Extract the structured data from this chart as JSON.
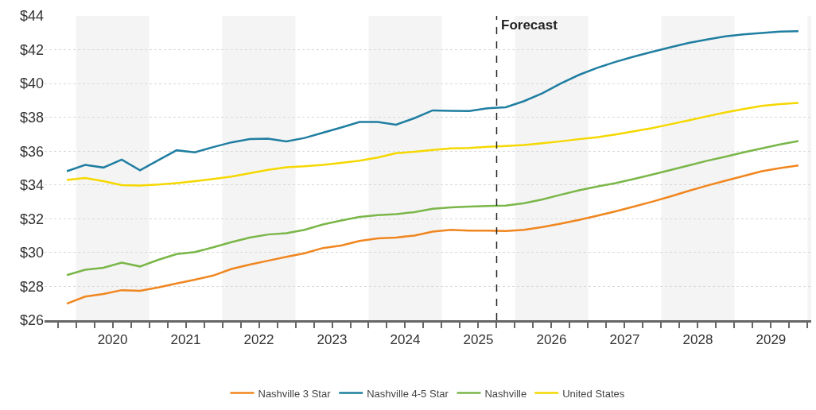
{
  "chart_data": {
    "type": "line",
    "x": [
      2019.875,
      2020.125,
      2020.375,
      2020.625,
      2020.875,
      2021.125,
      2021.375,
      2021.625,
      2021.875,
      2022.125,
      2022.375,
      2022.625,
      2022.875,
      2023.125,
      2023.375,
      2023.625,
      2023.875,
      2024.125,
      2024.375,
      2024.625,
      2024.875,
      2025.125,
      2025.375,
      2025.625,
      2025.875,
      2026.125,
      2026.375,
      2026.625,
      2026.875,
      2027.125,
      2027.375,
      2027.625,
      2027.875,
      2028.125,
      2028.375,
      2028.625,
      2028.875,
      2029.125,
      2029.375,
      2029.625,
      2029.875
    ],
    "series": [
      {
        "name": "Nashville 3 Star",
        "color": "#f0861f",
        "values": [
          26.98,
          27.4,
          27.55,
          27.78,
          27.74,
          27.94,
          28.17,
          28.4,
          28.64,
          29.03,
          29.29,
          29.52,
          29.75,
          29.96,
          30.27,
          30.42,
          30.69,
          30.84,
          30.89,
          31.01,
          31.24,
          31.35,
          31.3,
          31.3,
          31.27,
          31.35,
          31.51,
          31.71,
          31.93,
          32.18,
          32.44,
          32.72,
          33.01,
          33.32,
          33.65,
          33.96,
          34.25,
          34.53,
          34.81,
          35.0,
          35.15
        ]
      },
      {
        "name": "Nashville 4-5 Star",
        "color": "#1f7ea1",
        "values": [
          34.81,
          35.19,
          35.03,
          35.5,
          34.87,
          35.46,
          36.05,
          35.93,
          36.24,
          36.52,
          36.71,
          36.74,
          36.58,
          36.78,
          37.09,
          37.4,
          37.72,
          37.72,
          37.56,
          37.95,
          38.41,
          38.38,
          38.37,
          38.54,
          38.6,
          38.96,
          39.42,
          40.0,
          40.51,
          40.93,
          41.28,
          41.59,
          41.87,
          42.14,
          42.4,
          42.6,
          42.79,
          42.91,
          42.99,
          43.07,
          43.1
        ]
      },
      {
        "name": "Nashville",
        "color": "#7ab648",
        "values": [
          28.67,
          28.98,
          29.1,
          29.41,
          29.18,
          29.57,
          29.91,
          30.03,
          30.31,
          30.62,
          30.89,
          31.07,
          31.15,
          31.35,
          31.66,
          31.9,
          32.11,
          32.21,
          32.28,
          32.39,
          32.59,
          32.67,
          32.72,
          32.76,
          32.78,
          32.92,
          33.14,
          33.42,
          33.68,
          33.91,
          34.11,
          34.35,
          34.61,
          34.88,
          35.15,
          35.43,
          35.67,
          35.93,
          36.16,
          36.4,
          36.6
        ]
      },
      {
        "name": "United States",
        "color": "#f5d800",
        "values": [
          34.3,
          34.41,
          34.22,
          33.99,
          33.97,
          34.02,
          34.11,
          34.22,
          34.35,
          34.49,
          34.69,
          34.89,
          35.05,
          35.11,
          35.19,
          35.31,
          35.43,
          35.62,
          35.88,
          35.96,
          36.07,
          36.16,
          36.19,
          36.26,
          36.3,
          36.36,
          36.47,
          36.58,
          36.71,
          36.82,
          36.99,
          37.17,
          37.36,
          37.59,
          37.82,
          38.06,
          38.29,
          38.49,
          38.68,
          38.78,
          38.85
        ]
      }
    ],
    "xlim": [
      2019.57,
      2030.05
    ],
    "xticks": [
      {
        "value": 2019.75,
        "label": null
      },
      {
        "value": 2020.0,
        "label": null
      },
      {
        "value": 2020.25,
        "label": null
      },
      {
        "value": 2020.5,
        "label": "2020"
      },
      {
        "value": 2020.75,
        "label": null
      },
      {
        "value": 2021.0,
        "label": null
      },
      {
        "value": 2021.25,
        "label": null
      },
      {
        "value": 2021.5,
        "label": "2021"
      },
      {
        "value": 2021.75,
        "label": null
      },
      {
        "value": 2022.0,
        "label": null
      },
      {
        "value": 2022.25,
        "label": null
      },
      {
        "value": 2022.5,
        "label": "2022"
      },
      {
        "value": 2022.75,
        "label": null
      },
      {
        "value": 2023.0,
        "label": null
      },
      {
        "value": 2023.25,
        "label": null
      },
      {
        "value": 2023.5,
        "label": "2023"
      },
      {
        "value": 2023.75,
        "label": null
      },
      {
        "value": 2024.0,
        "label": null
      },
      {
        "value": 2024.25,
        "label": null
      },
      {
        "value": 2024.5,
        "label": "2024"
      },
      {
        "value": 2024.75,
        "label": null
      },
      {
        "value": 2025.0,
        "label": null
      },
      {
        "value": 2025.25,
        "label": null
      },
      {
        "value": 2025.5,
        "label": "2025"
      },
      {
        "value": 2025.75,
        "label": null
      },
      {
        "value": 2026.0,
        "label": null
      },
      {
        "value": 2026.25,
        "label": null
      },
      {
        "value": 2026.5,
        "label": "2026"
      },
      {
        "value": 2026.75,
        "label": null
      },
      {
        "value": 2027.0,
        "label": null
      },
      {
        "value": 2027.25,
        "label": null
      },
      {
        "value": 2027.5,
        "label": "2027"
      },
      {
        "value": 2027.75,
        "label": null
      },
      {
        "value": 2028.0,
        "label": null
      },
      {
        "value": 2028.25,
        "label": null
      },
      {
        "value": 2028.5,
        "label": "2028"
      },
      {
        "value": 2028.75,
        "label": null
      },
      {
        "value": 2029.0,
        "label": null
      },
      {
        "value": 2029.25,
        "label": null
      },
      {
        "value": 2029.5,
        "label": "2029"
      },
      {
        "value": 2029.75,
        "label": null
      },
      {
        "value": 2030.0,
        "label": null
      }
    ],
    "ylim": [
      26,
      44
    ],
    "yticks": [
      {
        "value": 26,
        "label": "$26"
      },
      {
        "value": 28,
        "label": "$28"
      },
      {
        "value": 30,
        "label": "$30"
      },
      {
        "value": 32,
        "label": "$32"
      },
      {
        "value": 34,
        "label": "$34"
      },
      {
        "value": 36,
        "label": "$36"
      },
      {
        "value": 38,
        "label": "$38"
      },
      {
        "value": 40,
        "label": "$40"
      },
      {
        "value": 42,
        "label": "$42"
      },
      {
        "value": 44,
        "label": "$44"
      }
    ],
    "bands": [
      {
        "axis": "x",
        "from": 2020,
        "to": 2021,
        "color": "#f4f4f4"
      },
      {
        "axis": "x",
        "from": 2022,
        "to": 2023,
        "color": "#f4f4f4"
      },
      {
        "axis": "x",
        "from": 2024,
        "to": 2025,
        "color": "#f4f4f4"
      },
      {
        "axis": "x",
        "from": 2026,
        "to": 2027,
        "color": "#f4f4f4"
      },
      {
        "axis": "x",
        "from": 2028,
        "to": 2029,
        "color": "#f4f4f4"
      },
      {
        "axis": "x",
        "from": 2030,
        "to": 2030.05,
        "color": "#f4f4f4"
      }
    ],
    "ref_lines": [
      {
        "axis": "x",
        "value": 2025.75,
        "label": "Forecast",
        "color": "#222222",
        "line_style": "dashed"
      }
    ],
    "grid": "y",
    "legend": "bottom",
    "marker": "none",
    "line_style": "solid"
  }
}
